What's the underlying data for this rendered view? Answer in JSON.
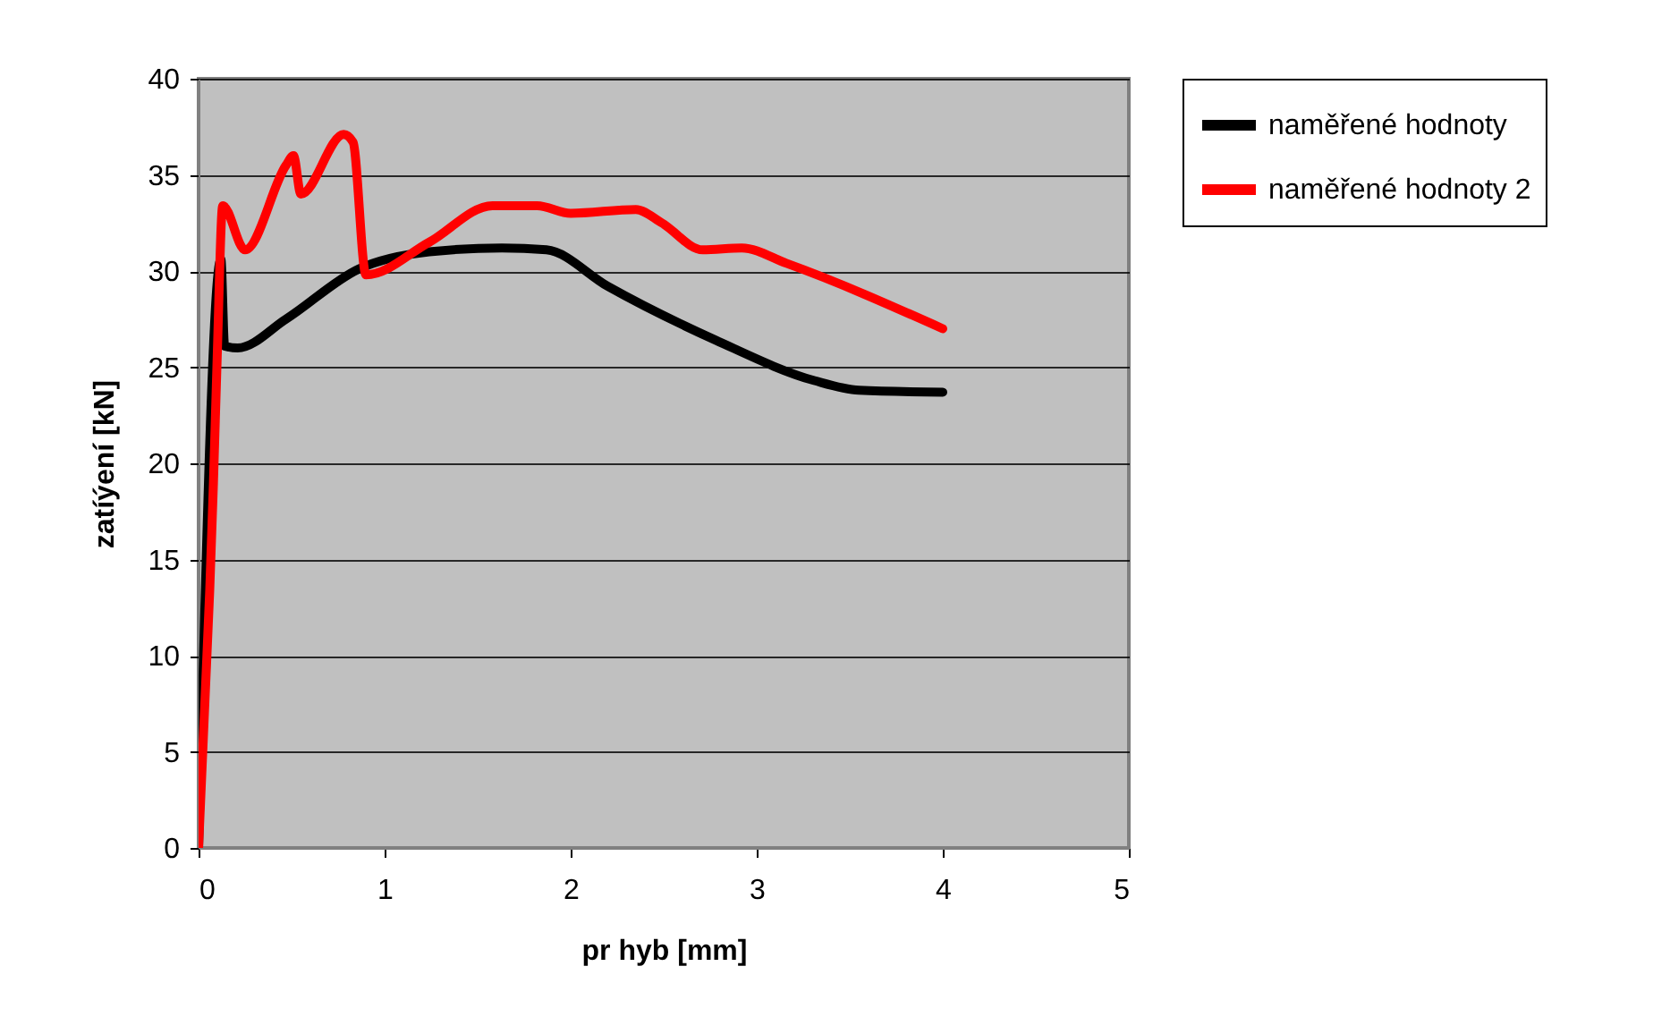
{
  "chart_data": {
    "type": "line",
    "xlabel": "pr   hyb [mm]",
    "ylabel": "zatíýení [kN]",
    "xlim": [
      0,
      5
    ],
    "xticks": [
      0,
      1,
      2,
      3,
      4,
      5
    ],
    "ylim": [
      0,
      40
    ],
    "yticks": [
      0,
      5,
      10,
      15,
      20,
      25,
      30,
      35,
      40
    ],
    "grid": "y",
    "legend": "right",
    "marker": "none",
    "line_style": "solid",
    "series": [
      {
        "name": "naměřené hodnoty",
        "color": "#000000",
        "x": [
          0,
          0.12,
          0.14,
          0.21,
          0.47,
          0.86,
          1.24,
          1.63,
          1.87,
          2.2,
          2.78,
          3.31,
          3.55,
          4.0
        ],
        "values": [
          0,
          30.6,
          26.1,
          26,
          27.5,
          30.1,
          31,
          31.2,
          31.1,
          29.2,
          26.4,
          24.3,
          23.8,
          23.7
        ]
      },
      {
        "name": "naměřené hodnoty 2",
        "color": "#ff0000",
        "x": [
          0,
          0.06,
          0.08,
          0.1,
          0.13,
          0.25,
          0.47,
          0.51,
          0.55,
          0.78,
          0.83,
          0.9,
          1.24,
          1.58,
          1.82,
          2.0,
          2.35,
          2.49,
          2.71,
          2.92,
          3.16,
          4.0
        ],
        "values": [
          0,
          13.4,
          19,
          25.5,
          33.4,
          31.1,
          35.5,
          36,
          34,
          37.1,
          36.7,
          29.8,
          31.5,
          33.4,
          33.4,
          33,
          33.2,
          32.5,
          31.1,
          31.2,
          30.4,
          27
        ]
      }
    ]
  }
}
